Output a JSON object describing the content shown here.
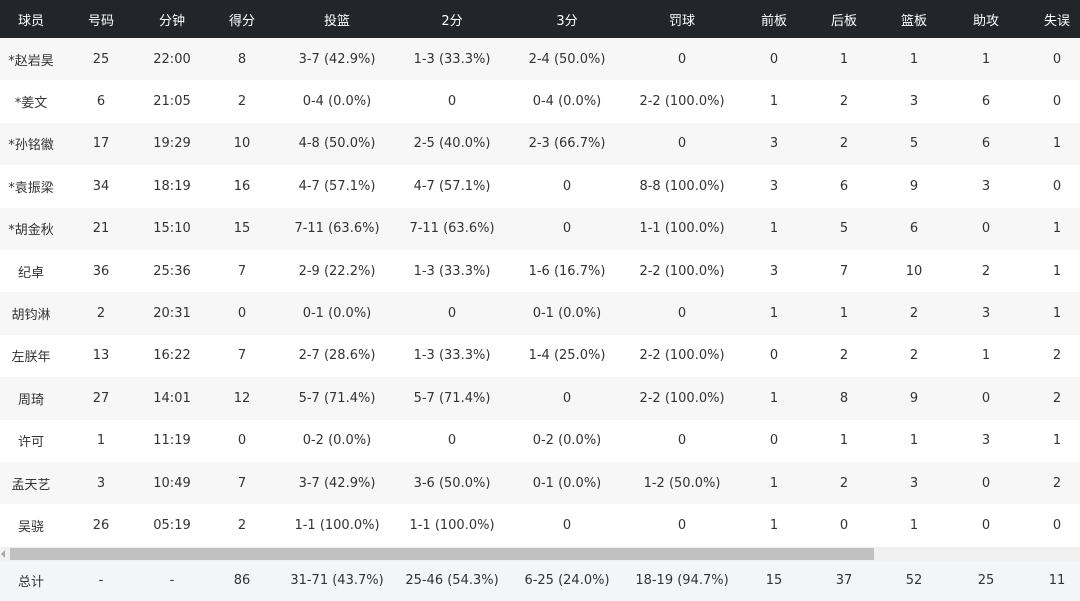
{
  "headers": [
    "球员",
    "号码",
    "分钟",
    "得分",
    "投篮",
    "2分",
    "3分",
    "罚球",
    "前板",
    "后板",
    "篮板",
    "助攻",
    "失误"
  ],
  "rows": [
    [
      "*赵岩昊",
      "25",
      "22:00",
      "8",
      "3-7 (42.9%)",
      "1-3 (33.3%)",
      "2-4 (50.0%)",
      "0",
      "0",
      "1",
      "1",
      "1",
      "0"
    ],
    [
      "*姜文",
      "6",
      "21:05",
      "2",
      "0-4 (0.0%)",
      "0",
      "0-4 (0.0%)",
      "2-2 (100.0%)",
      "1",
      "2",
      "3",
      "6",
      "0"
    ],
    [
      "*孙铭徽",
      "17",
      "19:29",
      "10",
      "4-8 (50.0%)",
      "2-5 (40.0%)",
      "2-3 (66.7%)",
      "0",
      "3",
      "2",
      "5",
      "6",
      "1"
    ],
    [
      "*袁振梁",
      "34",
      "18:19",
      "16",
      "4-7 (57.1%)",
      "4-7 (57.1%)",
      "0",
      "8-8 (100.0%)",
      "3",
      "6",
      "9",
      "3",
      "0"
    ],
    [
      "*胡金秋",
      "21",
      "15:10",
      "15",
      "7-11 (63.6%)",
      "7-11 (63.6%)",
      "0",
      "1-1 (100.0%)",
      "1",
      "5",
      "6",
      "0",
      "1"
    ],
    [
      "纪卓",
      "36",
      "25:36",
      "7",
      "2-9 (22.2%)",
      "1-3 (33.3%)",
      "1-6 (16.7%)",
      "2-2 (100.0%)",
      "3",
      "7",
      "10",
      "2",
      "1"
    ],
    [
      "胡钧淋",
      "2",
      "20:31",
      "0",
      "0-1 (0.0%)",
      "0",
      "0-1 (0.0%)",
      "0",
      "1",
      "1",
      "2",
      "3",
      "1"
    ],
    [
      "左朕年",
      "13",
      "16:22",
      "7",
      "2-7 (28.6%)",
      "1-3 (33.3%)",
      "1-4 (25.0%)",
      "2-2 (100.0%)",
      "0",
      "2",
      "2",
      "1",
      "2"
    ],
    [
      "周琦",
      "27",
      "14:01",
      "12",
      "5-7 (71.4%)",
      "5-7 (71.4%)",
      "0",
      "2-2 (100.0%)",
      "1",
      "8",
      "9",
      "0",
      "2"
    ],
    [
      "许可",
      "1",
      "11:19",
      "0",
      "0-2 (0.0%)",
      "0",
      "0-2 (0.0%)",
      "0",
      "0",
      "1",
      "1",
      "3",
      "1"
    ],
    [
      "孟天艺",
      "3",
      "10:49",
      "7",
      "3-7 (42.9%)",
      "3-6 (50.0%)",
      "0-1 (0.0%)",
      "1-2 (50.0%)",
      "1",
      "2",
      "3",
      "0",
      "2"
    ],
    [
      "吴骁",
      "26",
      "05:19",
      "2",
      "1-1 (100.0%)",
      "1-1 (100.0%)",
      "0",
      "0",
      "1",
      "0",
      "1",
      "0",
      "0"
    ]
  ],
  "totals": [
    "总计",
    "-",
    "-",
    "86",
    "31-71 (43.7%)",
    "25-46 (54.3%)",
    "6-25 (24.0%)",
    "18-19 (94.7%)",
    "15",
    "37",
    "52",
    "25",
    "11"
  ],
  "scrollbar": {
    "horizontal_position_percent": 0,
    "visible_fraction": 0.8
  },
  "colors": {
    "header_bg": "#22262b",
    "row_alt": "#f7f7f7",
    "total_bg": "#f4f5f8"
  }
}
